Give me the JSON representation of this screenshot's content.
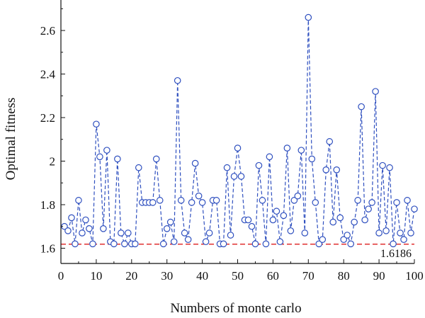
{
  "chart_data": {
    "type": "line",
    "xlabel": "Numbers of monte carlo",
    "ylabel": "Optimal fitness",
    "xlim": [
      0,
      100
    ],
    "ylim": [
      1.53,
      2.74
    ],
    "x_ticks": [
      0,
      10,
      20,
      30,
      40,
      50,
      60,
      70,
      80,
      90,
      100
    ],
    "y_ticks": [
      1.6,
      1.8,
      2,
      2.2,
      2.4,
      2.6
    ],
    "x_tick_labels": [
      "0",
      "10",
      "20",
      "30",
      "40",
      "50",
      "60",
      "70",
      "80",
      "90",
      "100"
    ],
    "y_tick_labels": [
      "1.6",
      "1.8",
      "2",
      "2.2",
      "2.4",
      "2.6"
    ],
    "grid": false,
    "series": [
      {
        "color": "#2e4fbf",
        "line_style": "dashed",
        "marker": "open-circle",
        "x": [
          1,
          2,
          3,
          4,
          5,
          6,
          7,
          8,
          9,
          10,
          11,
          12,
          13,
          14,
          15,
          16,
          17,
          18,
          19,
          20,
          21,
          22,
          23,
          24,
          25,
          26,
          27,
          28,
          29,
          30,
          31,
          32,
          33,
          34,
          35,
          36,
          37,
          38,
          39,
          40,
          41,
          42,
          43,
          44,
          45,
          46,
          47,
          48,
          49,
          50,
          51,
          52,
          53,
          54,
          55,
          56,
          57,
          58,
          59,
          60,
          61,
          62,
          63,
          64,
          65,
          66,
          67,
          68,
          69,
          70,
          71,
          72,
          73,
          74,
          75,
          76,
          77,
          78,
          79,
          80,
          81,
          82,
          83,
          84,
          85,
          86,
          87,
          88,
          89,
          90,
          91,
          92,
          93,
          94,
          95,
          96,
          97,
          98,
          99,
          100
        ],
        "y": [
          1.7,
          1.68,
          1.74,
          1.62,
          1.82,
          1.67,
          1.73,
          1.69,
          1.62,
          2.17,
          2.02,
          1.69,
          2.05,
          1.63,
          1.62,
          2.01,
          1.67,
          1.62,
          1.67,
          1.62,
          1.62,
          1.97,
          1.81,
          1.81,
          1.81,
          1.81,
          2.01,
          1.82,
          1.62,
          1.69,
          1.72,
          1.63,
          2.37,
          1.82,
          1.67,
          1.64,
          1.81,
          1.99,
          1.84,
          1.81,
          1.63,
          1.67,
          1.82,
          1.82,
          1.62,
          1.62,
          1.97,
          1.66,
          1.93,
          2.06,
          1.93,
          1.73,
          1.73,
          1.7,
          1.62,
          1.98,
          1.82,
          1.62,
          2.02,
          1.73,
          1.77,
          1.63,
          1.75,
          2.06,
          1.68,
          1.82,
          1.84,
          2.05,
          1.67,
          2.66,
          2.01,
          1.81,
          1.62,
          1.64,
          1.96,
          2.09,
          1.72,
          1.96,
          1.74,
          1.64,
          1.66,
          1.62,
          1.72,
          1.82,
          2.25,
          1.73,
          1.78,
          1.81,
          2.32,
          1.67,
          1.98,
          1.68,
          1.97,
          1.62,
          1.81,
          1.67,
          1.64,
          1.82,
          1.67,
          1.78
        ]
      }
    ],
    "reference_line": {
      "y": 1.6186,
      "label": "1.6186",
      "color": "#e03030",
      "line_style": "dashed"
    }
  }
}
